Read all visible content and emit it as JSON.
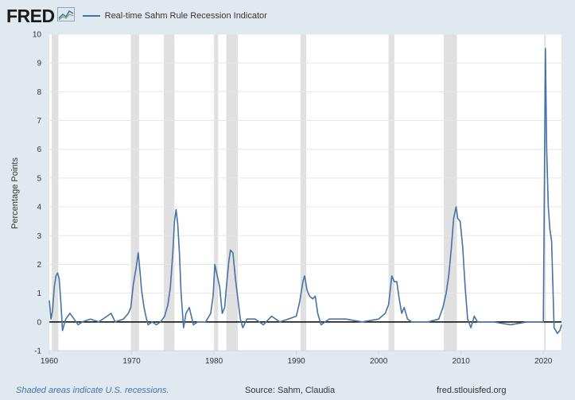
{
  "header": {
    "logo_text": "FRED",
    "logo_icon": "chart-line-icon",
    "legend_label": "Real-time Sahm Rule Recession Indicator",
    "legend_color": "#4572a7"
  },
  "footer": {
    "note": "Shaded areas indicate U.S. recessions.",
    "source": "Source: Sahm, Claudia",
    "site": "fred.stlouisfed.org"
  },
  "colors": {
    "background": "#e1e9f0",
    "plot_background": "#ffffff",
    "series": "#4572a7",
    "recession_shade": "#e0e0e0",
    "zero_line": "#000000"
  },
  "chart_data": {
    "type": "line",
    "title": "",
    "xlabel": "",
    "ylabel": "Percentage Points",
    "xlim": [
      1960,
      2022.2
    ],
    "ylim": [
      -1,
      10
    ],
    "y_ticks": [
      -1,
      0,
      1,
      2,
      3,
      4,
      5,
      6,
      7,
      8,
      9,
      10
    ],
    "x_ticks": [
      1960,
      1970,
      1980,
      1990,
      2000,
      2010,
      2020
    ],
    "grid": "horizontal",
    "reference_line": 0,
    "recessions": [
      [
        1960.3,
        1961.1
      ],
      [
        1969.9,
        1970.9
      ],
      [
        1973.9,
        1975.2
      ],
      [
        1980.0,
        1980.5
      ],
      [
        1981.5,
        1982.9
      ],
      [
        1990.5,
        1991.2
      ],
      [
        2001.2,
        2001.9
      ],
      [
        2007.9,
        2009.5
      ],
      [
        2020.1,
        2020.3
      ]
    ],
    "series": [
      {
        "x": [
          1960.0,
          1960.2,
          1960.4,
          1960.6,
          1960.8,
          1961.0,
          1961.2,
          1961.4,
          1961.6,
          1961.8,
          1962.0,
          1962.5,
          1963.0,
          1963.5,
          1964.0,
          1965.0,
          1966.0,
          1967.0,
          1967.5,
          1968.0,
          1969.0,
          1969.6,
          1969.9,
          1970.2,
          1970.5,
          1970.8,
          1971.0,
          1971.2,
          1971.5,
          1971.8,
          1972.0,
          1972.5,
          1973.0,
          1973.5,
          1974.0,
          1974.4,
          1974.7,
          1975.0,
          1975.2,
          1975.4,
          1975.6,
          1975.8,
          1976.0,
          1976.3,
          1976.6,
          1977.0,
          1977.5,
          1978.0,
          1979.0,
          1979.6,
          1979.9,
          1980.1,
          1980.4,
          1980.7,
          1981.0,
          1981.3,
          1981.5,
          1981.8,
          1982.0,
          1982.3,
          1982.6,
          1982.9,
          1983.2,
          1983.5,
          1984.0,
          1985.0,
          1986.0,
          1987.0,
          1988.0,
          1989.0,
          1990.0,
          1990.4,
          1990.8,
          1991.0,
          1991.3,
          1991.6,
          1992.0,
          1992.3,
          1992.6,
          1993.0,
          1993.5,
          1994.0,
          1996.0,
          1998.0,
          2000.0,
          2000.8,
          2001.2,
          2001.6,
          2001.9,
          2002.2,
          2002.5,
          2002.8,
          2003.1,
          2003.5,
          2004.0,
          2006.0,
          2007.3,
          2007.8,
          2008.2,
          2008.5,
          2008.8,
          2009.1,
          2009.4,
          2009.6,
          2009.9,
          2010.2,
          2010.5,
          2010.8,
          2011.2,
          2011.6,
          2012.0,
          2014.0,
          2016.0,
          2018.0,
          2019.5,
          2020.0,
          2020.25,
          2020.4,
          2020.6,
          2020.8,
          2021.0,
          2021.3,
          2021.5,
          2021.7,
          2022.0,
          2022.2
        ],
        "y": [
          0.75,
          0.1,
          0.4,
          1.2,
          1.6,
          1.7,
          1.5,
          0.7,
          -0.3,
          -0.1,
          0.1,
          0.3,
          0.1,
          -0.1,
          0.0,
          0.1,
          0.0,
          0.2,
          0.3,
          0.0,
          0.1,
          0.3,
          0.5,
          1.3,
          1.8,
          2.4,
          1.8,
          1.1,
          0.5,
          0.1,
          -0.1,
          0.0,
          -0.1,
          0.0,
          0.2,
          0.6,
          1.2,
          2.4,
          3.5,
          3.9,
          3.4,
          2.4,
          1.0,
          -0.2,
          0.3,
          0.5,
          -0.1,
          0.0,
          0.0,
          0.3,
          0.9,
          2.0,
          1.6,
          1.2,
          0.3,
          0.5,
          1.2,
          2.1,
          2.5,
          2.4,
          1.5,
          0.8,
          0.1,
          -0.2,
          0.1,
          0.1,
          -0.1,
          0.2,
          0.0,
          0.1,
          0.2,
          0.7,
          1.4,
          1.6,
          1.1,
          0.9,
          0.8,
          0.9,
          0.3,
          -0.1,
          0.0,
          0.1,
          0.1,
          0.0,
          0.1,
          0.3,
          0.6,
          1.6,
          1.4,
          1.4,
          0.8,
          0.3,
          0.5,
          0.1,
          0.0,
          0.0,
          0.1,
          0.5,
          1.0,
          1.6,
          2.5,
          3.6,
          4.0,
          3.6,
          3.5,
          2.6,
          1.2,
          0.1,
          -0.2,
          0.2,
          0.0,
          0.0,
          -0.1,
          0.0,
          0.0,
          0.0,
          9.5,
          6.0,
          4.0,
          3.2,
          2.8,
          -0.2,
          -0.3,
          -0.4,
          -0.3,
          -0.1
        ]
      }
    ]
  }
}
